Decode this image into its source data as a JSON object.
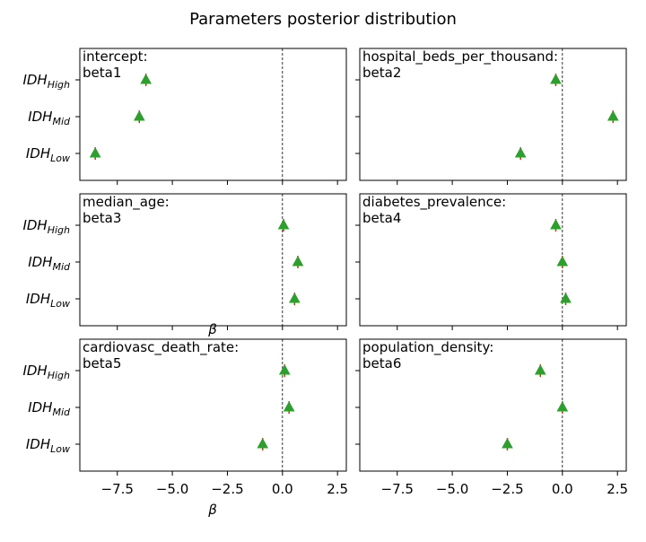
{
  "figure": {
    "title": "Parameters posterior distribution"
  },
  "chart_data": {
    "type": "scatter",
    "title": "Parameters posterior distribution",
    "xlabel": "β",
    "xlim": [
      -9.2,
      2.9
    ],
    "xticks": [
      -7.5,
      -5.0,
      -2.5,
      0.0,
      2.5
    ],
    "xtick_labels": [
      "−7.5",
      "−5.0",
      "−2.5",
      "0.0",
      "2.5"
    ],
    "reference_line_x": 0,
    "categories": [
      {
        "base": "IDH",
        "sub": "High"
      },
      {
        "base": "IDH",
        "sub": "Mid"
      },
      {
        "base": "IDH",
        "sub": "Low"
      }
    ],
    "marker_color": "#2ca02c",
    "errorbar_color": "#d62728",
    "panels": [
      {
        "name": "intercept:",
        "param": "beta1",
        "values": [
          -6.2,
          -6.5,
          -8.5
        ],
        "errors": [
          0.12,
          0.12,
          0.1
        ]
      },
      {
        "name": "hospital_beds_per_thousand:",
        "param": "beta2",
        "values": [
          -0.3,
          2.3,
          -1.9
        ],
        "errors": [
          0.1,
          0.1,
          0.1
        ]
      },
      {
        "name": "median_age:",
        "param": "beta3",
        "values": [
          0.05,
          0.7,
          0.55
        ],
        "errors": [
          0.08,
          0.08,
          0.08
        ]
      },
      {
        "name": "diabetes_prevalence:",
        "param": "beta4",
        "values": [
          -0.3,
          0.0,
          0.15
        ],
        "errors": [
          0.08,
          0.08,
          0.08
        ]
      },
      {
        "name": "cardiovasc_death_rate:",
        "param": "beta5",
        "values": [
          0.1,
          0.3,
          -0.9
        ],
        "errors": [
          0.08,
          0.08,
          0.08
        ]
      },
      {
        "name": "population_density:",
        "param": "beta6",
        "values": [
          -1.0,
          0.0,
          -2.5
        ],
        "errors": [
          0.08,
          0.08,
          0.08
        ]
      }
    ]
  }
}
